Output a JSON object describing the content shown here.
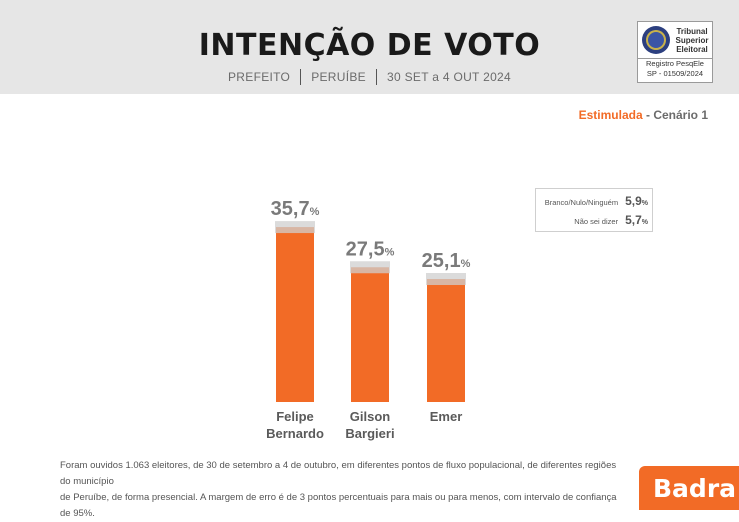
{
  "header": {
    "title": "INTENÇÃO DE VOTO",
    "subtitle_parts": [
      "PREFEITO",
      "PERUÍBE",
      "30 SET a 4 OUT 2024"
    ]
  },
  "tse_badge": {
    "name_lines": [
      "Tribunal",
      "Superior",
      "Eleitoral"
    ],
    "registry_label": "Registro PesqEle",
    "registry_number": "SP - 01509/2024"
  },
  "scenario": {
    "type": "Estimulada",
    "separator": " - ",
    "name": "Cenário 1"
  },
  "chart_data": {
    "type": "bar",
    "categories": [
      "Felipe Bernardo",
      "Gilson Bargieri",
      "Emer"
    ],
    "category_lines": [
      [
        "Felipe",
        "Bernardo"
      ],
      [
        "Gilson",
        "Bargieri"
      ],
      [
        "Emer"
      ]
    ],
    "values": [
      35.7,
      27.5,
      25.1
    ],
    "value_labels": [
      "35,7",
      "27,5",
      "25,1"
    ],
    "unit": "%",
    "margin_of_error": 3,
    "ylim": [
      0,
      40
    ],
    "bar_color": "#f26b26",
    "error_band_color": "#cfcfcf"
  },
  "others": [
    {
      "label": "Branco/Nulo/Ninguém",
      "value": "5,9",
      "unit": "%"
    },
    {
      "label": "Não sei dizer",
      "value": "5,7",
      "unit": "%"
    }
  ],
  "footnote": {
    "line1": "Foram ouvidos 1.063 eleitores, de 30 de setembro a 4 de outubro, em diferentes pontos de fluxo populacional, de diferentes regiões do município",
    "line2": "de Peruíbe, de forma presencial. A margem de erro é de 3 pontos percentuais para mais ou para menos, com intervalo de confiança de 95%."
  },
  "brand": {
    "name": "Badra",
    "color": "#f26b26"
  }
}
